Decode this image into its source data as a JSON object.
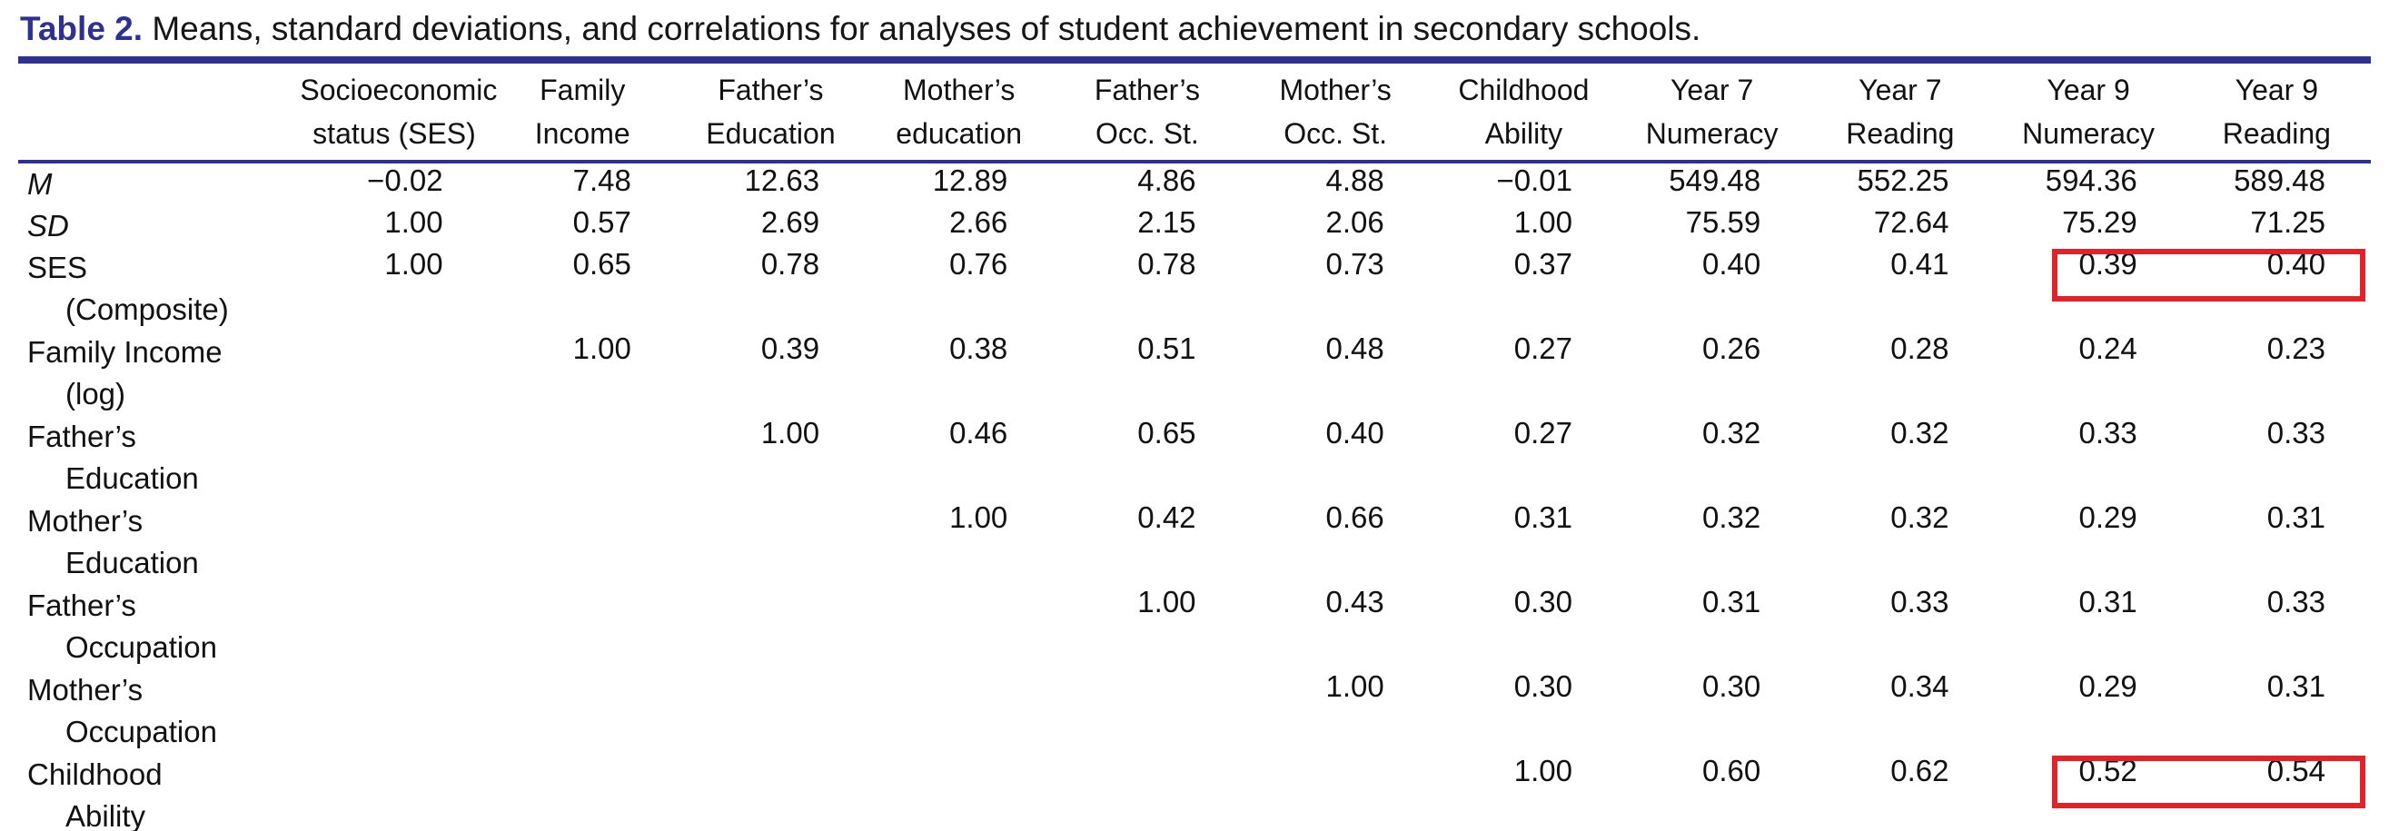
{
  "title": {
    "label": "Table 2.",
    "text": "Means, standard deviations, and correlations for analyses of student achievement in secondary schools."
  },
  "colors": {
    "accent_navy": "#2e3192",
    "highlight_red": "#e0232b",
    "text": "#111111"
  },
  "table": {
    "columns": [
      {
        "line1": "Socioeconomic",
        "line2": "status (SES)"
      },
      {
        "line1": "Family",
        "line2": "Income"
      },
      {
        "line1": "Father’s",
        "line2": "Education"
      },
      {
        "line1": "Mother’s",
        "line2": "education"
      },
      {
        "line1": "Father’s",
        "line2": "Occ. St."
      },
      {
        "line1": "Mother’s",
        "line2": "Occ. St."
      },
      {
        "line1": "Childhood",
        "line2": "Ability"
      },
      {
        "line1": "Year 7",
        "line2": "Numeracy"
      },
      {
        "line1": "Year 7",
        "line2": "Reading"
      },
      {
        "line1": "Year 9",
        "line2": "Numeracy"
      },
      {
        "line1": "Year 9",
        "line2": "Reading"
      }
    ],
    "rows": [
      {
        "label": "M",
        "label2": "",
        "italic": true,
        "values": [
          "−0.02",
          "7.48",
          "12.63",
          "12.89",
          "4.86",
          "4.88",
          "−0.01",
          "549.48",
          "552.25",
          "594.36",
          "589.48"
        ]
      },
      {
        "label": "SD",
        "label2": "",
        "italic": true,
        "values": [
          "1.00",
          "0.57",
          "2.69",
          "2.66",
          "2.15",
          "2.06",
          "1.00",
          "75.59",
          "72.64",
          "75.29",
          "71.25"
        ]
      },
      {
        "label": "SES",
        "label2": "(Composite)",
        "values": [
          "1.00",
          "0.65",
          "0.78",
          "0.76",
          "0.78",
          "0.73",
          "0.37",
          "0.40",
          "0.41",
          "0.39",
          "0.40"
        ],
        "highlight": [
          9,
          10
        ]
      },
      {
        "label": "Family Income",
        "label2": "(log)",
        "values": [
          "",
          "1.00",
          "0.39",
          "0.38",
          "0.51",
          "0.48",
          "0.27",
          "0.26",
          "0.28",
          "0.24",
          "0.23"
        ]
      },
      {
        "label": "Father’s",
        "label2": "Education",
        "values": [
          "",
          "",
          "1.00",
          "0.46",
          "0.65",
          "0.40",
          "0.27",
          "0.32",
          "0.32",
          "0.33",
          "0.33"
        ]
      },
      {
        "label": "Mother’s",
        "label2": "Education",
        "values": [
          "",
          "",
          "",
          "1.00",
          "0.42",
          "0.66",
          "0.31",
          "0.32",
          "0.32",
          "0.29",
          "0.31"
        ]
      },
      {
        "label": "Father’s",
        "label2": "Occupation",
        "values": [
          "",
          "",
          "",
          "",
          "1.00",
          "0.43",
          "0.30",
          "0.31",
          "0.33",
          "0.31",
          "0.33"
        ]
      },
      {
        "label": "Mother’s",
        "label2": "Occupation",
        "values": [
          "",
          "",
          "",
          "",
          "",
          "1.00",
          "0.30",
          "0.30",
          "0.34",
          "0.29",
          "0.31"
        ]
      },
      {
        "label": "Childhood",
        "label2": "Ability",
        "values": [
          "",
          "",
          "",
          "",
          "",
          "",
          "1.00",
          "0.60",
          "0.62",
          "0.52",
          "0.54"
        ],
        "highlight": [
          9,
          10
        ]
      }
    ]
  }
}
